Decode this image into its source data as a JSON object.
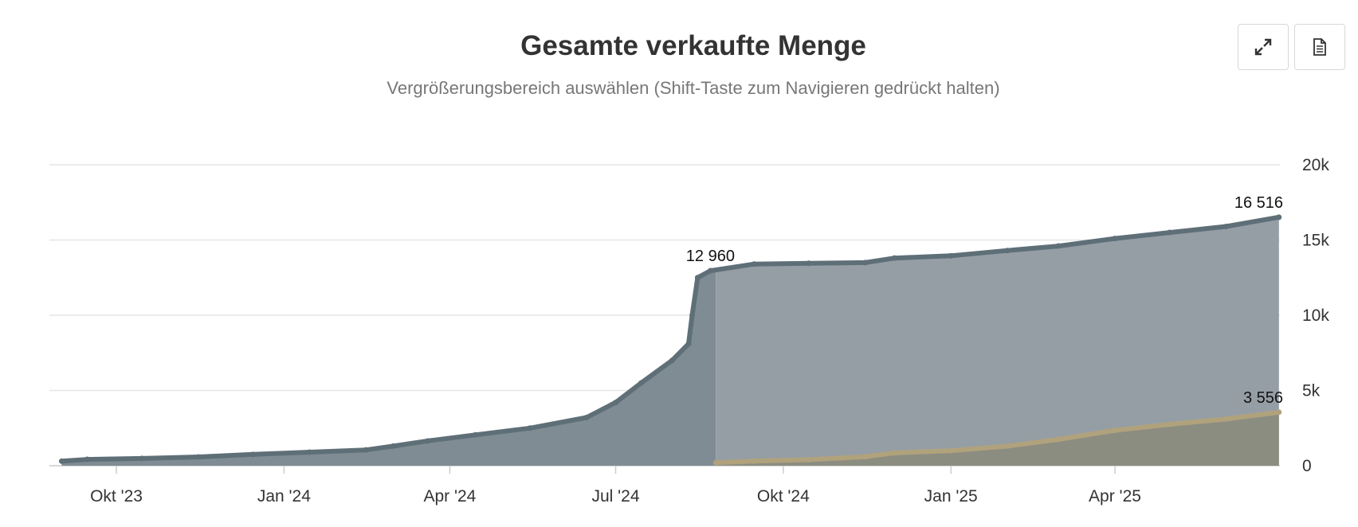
{
  "toolbar": {
    "expand_icon": "expand-arrows-icon",
    "export_icon": "document-icon"
  },
  "chart_data": {
    "type": "area",
    "title": "Gesamte verkaufte Menge",
    "subtitle": "Vergrößerungsbereich auswählen (Shift-Taste zum Navigieren gedrückt halten)",
    "xlabel": "",
    "ylabel": "",
    "x_axis": {
      "type": "datetime",
      "range": [
        "2023-09-01",
        "2025-06-30"
      ],
      "ticks": [
        {
          "date": "2023-10-01",
          "label": "Okt '23"
        },
        {
          "date": "2024-01-01",
          "label": "Jan '24"
        },
        {
          "date": "2024-04-01",
          "label": "Apr '24"
        },
        {
          "date": "2024-07-01",
          "label": "Jul '24"
        },
        {
          "date": "2024-10-01",
          "label": "Okt '24"
        },
        {
          "date": "2025-01-01",
          "label": "Jan '25"
        },
        {
          "date": "2025-04-01",
          "label": "Apr '25"
        }
      ]
    },
    "y_axis": {
      "position": "right",
      "ylim": [
        0,
        20000
      ],
      "ticks": [
        {
          "value": 0,
          "label": "0"
        },
        {
          "value": 5000,
          "label": "5k"
        },
        {
          "value": 10000,
          "label": "10k"
        },
        {
          "value": 15000,
          "label": "15k"
        },
        {
          "value": 20000,
          "label": "20k"
        }
      ]
    },
    "grid": true,
    "legend": "none",
    "series": [
      {
        "color": "#5f6f78",
        "fill": "#7f8c93",
        "fill_after_highlight": "#959ea5",
        "highlight_split": "2024-08-25",
        "points": [
          [
            "2023-09-01",
            300
          ],
          [
            "2023-09-15",
            420
          ],
          [
            "2023-10-15",
            480
          ],
          [
            "2023-11-15",
            580
          ],
          [
            "2023-12-15",
            750
          ],
          [
            "2024-01-15",
            900
          ],
          [
            "2024-02-15",
            1050
          ],
          [
            "2024-03-01",
            1300
          ],
          [
            "2024-03-20",
            1650
          ],
          [
            "2024-04-15",
            2050
          ],
          [
            "2024-05-15",
            2500
          ],
          [
            "2024-06-15",
            3200
          ],
          [
            "2024-07-01",
            4200
          ],
          [
            "2024-07-15",
            5500
          ],
          [
            "2024-08-01",
            7000
          ],
          [
            "2024-08-10",
            8100
          ],
          [
            "2024-08-12",
            10000
          ],
          [
            "2024-08-15",
            12500
          ],
          [
            "2024-08-22",
            12960
          ],
          [
            "2024-09-15",
            13400
          ],
          [
            "2024-10-15",
            13450
          ],
          [
            "2024-11-15",
            13500
          ],
          [
            "2024-12-01",
            13800
          ],
          [
            "2025-01-01",
            13950
          ],
          [
            "2025-02-01",
            14300
          ],
          [
            "2025-03-01",
            14600
          ],
          [
            "2025-04-01",
            15100
          ],
          [
            "2025-05-01",
            15500
          ],
          [
            "2025-06-01",
            15900
          ],
          [
            "2025-06-30",
            16516
          ]
        ],
        "labels": [
          {
            "date": "2024-08-22",
            "value": 12960,
            "text": "12 960"
          },
          {
            "date": "2025-06-30",
            "value": 16516,
            "text": "16 516"
          }
        ]
      },
      {
        "color": "#b0a27c",
        "fill": "#8b897a",
        "points": [
          [
            "2024-08-25",
            200
          ],
          [
            "2024-09-15",
            300
          ],
          [
            "2024-10-15",
            400
          ],
          [
            "2024-11-15",
            600
          ],
          [
            "2024-12-01",
            850
          ],
          [
            "2025-01-01",
            1000
          ],
          [
            "2025-02-01",
            1300
          ],
          [
            "2025-03-01",
            1750
          ],
          [
            "2025-04-01",
            2350
          ],
          [
            "2025-05-01",
            2750
          ],
          [
            "2025-06-01",
            3100
          ],
          [
            "2025-06-30",
            3556
          ]
        ],
        "labels": [
          {
            "date": "2025-06-30",
            "value": 3556,
            "text": "3 556"
          }
        ]
      }
    ]
  }
}
